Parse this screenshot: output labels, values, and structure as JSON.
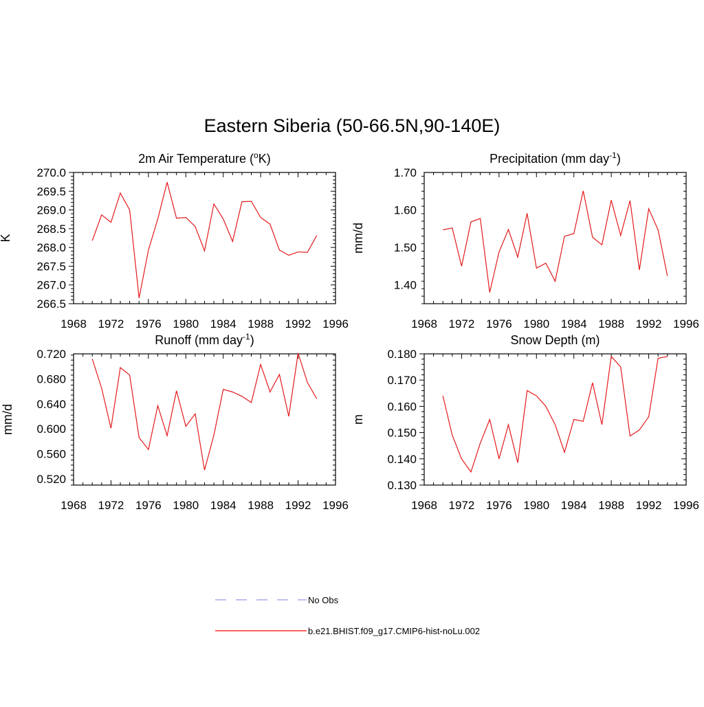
{
  "title": "Eastern Siberia (50-66.5N,90-140E)",
  "legend": {
    "placement": "bottom-center",
    "entries": [
      {
        "label": "No Obs",
        "color": "#9a9aee",
        "style": "dashed"
      },
      {
        "label": "b.e21.BHIST.f09_g17.CMIP6-hist-noLu.002",
        "color": "#ff0000",
        "style": "solid"
      }
    ]
  },
  "chart_data": [
    {
      "type": "line",
      "title": "2m Air Temperature (",
      "title_sup": "o",
      "title_after": "K)",
      "ylabel": "K",
      "xlim": [
        1968,
        1996
      ],
      "ylim": [
        266.5,
        270.0
      ],
      "xticks": [
        "1968",
        "1972",
        "1976",
        "1980",
        "1984",
        "1988",
        "1992",
        "1996"
      ],
      "yticks": [
        "266.5",
        "267.0",
        "267.5",
        "268.0",
        "268.5",
        "269.0",
        "269.5",
        "270.0"
      ],
      "grid": false,
      "color": "#e31a1c",
      "x": [
        1970,
        1971,
        1972,
        1973,
        1974,
        1975,
        1976,
        1977,
        1978,
        1979,
        1980,
        1981,
        1982,
        1983,
        1984,
        1985,
        1986,
        1987,
        1988,
        1989,
        1990,
        1991,
        1992,
        1993,
        1994
      ],
      "values": [
        268.18,
        268.87,
        268.67,
        269.45,
        269.0,
        266.65,
        267.93,
        268.76,
        269.74,
        268.78,
        268.8,
        268.56,
        267.91,
        269.16,
        268.76,
        268.16,
        269.22,
        269.23,
        268.8,
        268.62,
        267.93,
        267.79,
        267.88,
        267.87,
        268.32
      ]
    },
    {
      "type": "line",
      "title": "Precipitation (mm day",
      "title_sup": "-1",
      "title_after": ")",
      "ylabel": "mm/d",
      "xlim": [
        1968,
        1996
      ],
      "ylim": [
        1.35,
        1.7
      ],
      "xticks": [
        "1968",
        "1972",
        "1976",
        "1980",
        "1984",
        "1988",
        "1992",
        "1996"
      ],
      "yticks": [
        "1.40",
        "1.50",
        "1.60",
        "1.70"
      ],
      "grid": false,
      "color": "#e31a1c",
      "x": [
        1970,
        1971,
        1972,
        1973,
        1974,
        1975,
        1976,
        1977,
        1978,
        1979,
        1980,
        1981,
        1982,
        1983,
        1984,
        1985,
        1986,
        1987,
        1988,
        1989,
        1990,
        1991,
        1992,
        1993,
        1994
      ],
      "values": [
        1.547,
        1.552,
        1.45,
        1.568,
        1.577,
        1.38,
        1.488,
        1.548,
        1.474,
        1.591,
        1.445,
        1.458,
        1.41,
        1.53,
        1.537,
        1.651,
        1.527,
        1.507,
        1.626,
        1.532,
        1.625,
        1.44,
        1.603,
        1.547,
        1.424
      ]
    },
    {
      "type": "line",
      "title": "Runoff (mm day",
      "title_sup": "-1",
      "title_after": ")",
      "ylabel": "mm/d",
      "xlim": [
        1968,
        1996
      ],
      "ylim": [
        0.51,
        0.72
      ],
      "xticks": [
        "1968",
        "1972",
        "1976",
        "1980",
        "1984",
        "1988",
        "1992",
        "1996"
      ],
      "yticks": [
        "0.520",
        "0.560",
        "0.600",
        "0.640",
        "0.680",
        "0.720"
      ],
      "grid": false,
      "color": "#e31a1c",
      "x": [
        1970,
        1971,
        1972,
        1973,
        1974,
        1975,
        1976,
        1977,
        1978,
        1979,
        1980,
        1981,
        1982,
        1983,
        1984,
        1985,
        1986,
        1987,
        1988,
        1989,
        1990,
        1991,
        1992,
        1993,
        1994
      ],
      "values": [
        0.712,
        0.665,
        0.601,
        0.698,
        0.686,
        0.586,
        0.567,
        0.637,
        0.589,
        0.661,
        0.604,
        0.624,
        0.534,
        0.59,
        0.663,
        0.659,
        0.652,
        0.642,
        0.703,
        0.659,
        0.687,
        0.62,
        0.721,
        0.674,
        0.648
      ]
    },
    {
      "type": "line",
      "title": "Snow Depth (m)",
      "title_sup": "",
      "title_after": "",
      "ylabel": "m",
      "xlim": [
        1968,
        1996
      ],
      "ylim": [
        0.13,
        0.18
      ],
      "xticks": [
        "1968",
        "1972",
        "1976",
        "1980",
        "1984",
        "1988",
        "1992",
        "1996"
      ],
      "yticks": [
        "0.130",
        "0.140",
        "0.150",
        "0.160",
        "0.170",
        "0.180"
      ],
      "grid": false,
      "color": "#e31a1c",
      "x": [
        1970,
        1971,
        1972,
        1973,
        1974,
        1975,
        1976,
        1977,
        1978,
        1979,
        1980,
        1981,
        1982,
        1983,
        1984,
        1985,
        1986,
        1987,
        1988,
        1989,
        1990,
        1991,
        1992,
        1993,
        1994
      ],
      "values": [
        0.164,
        0.149,
        0.14,
        0.135,
        0.146,
        0.155,
        0.14,
        0.153,
        0.1385,
        0.166,
        0.164,
        0.16,
        0.153,
        0.1425,
        0.155,
        0.1543,
        0.169,
        0.153,
        0.179,
        0.175,
        0.1487,
        0.151,
        0.156,
        0.1783,
        0.179
      ]
    }
  ]
}
